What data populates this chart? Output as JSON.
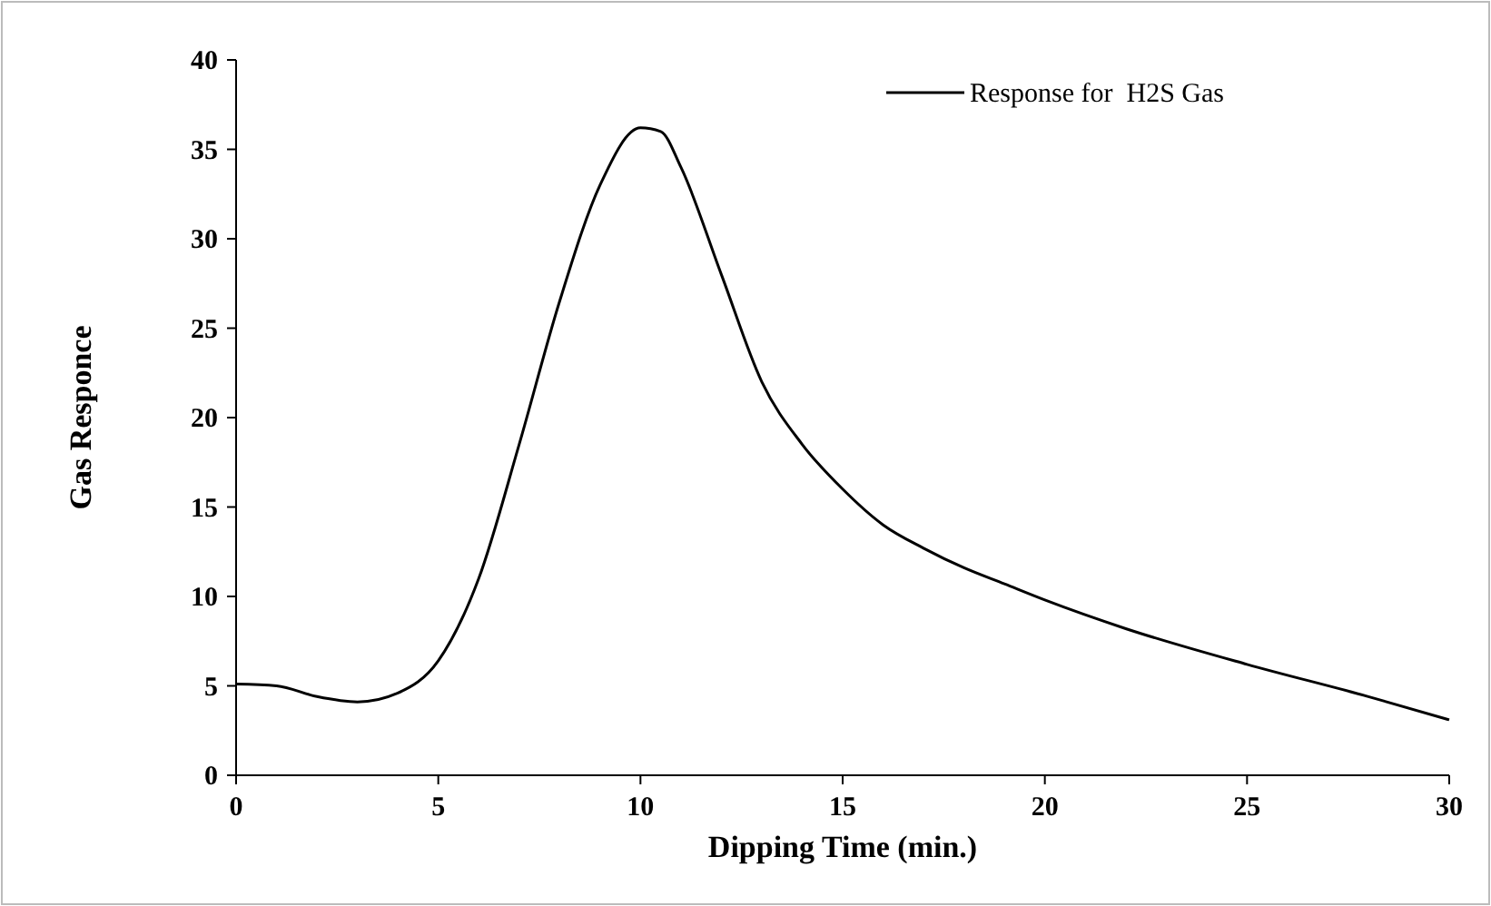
{
  "chart_data": {
    "type": "line",
    "xlabel": "Dipping Time (min.)",
    "ylabel": "Gas Responce",
    "xlim": [
      0,
      30
    ],
    "xticks": [
      0,
      5,
      10,
      15,
      20,
      25,
      30
    ],
    "ylim": [
      0,
      40
    ],
    "yticks": [
      0,
      5,
      10,
      15,
      20,
      25,
      30,
      35,
      40
    ],
    "legend": "top right",
    "grid": false,
    "marker": "none",
    "line_style": "solid",
    "series": [
      {
        "name": "Response for  H2S Gas",
        "color": "#000000",
        "x": [
          0,
          1,
          2,
          3,
          4,
          5,
          6,
          7,
          8,
          9,
          10,
          10.5,
          11,
          12,
          13,
          14,
          15,
          16,
          17,
          18,
          19,
          20,
          22,
          25,
          28,
          30
        ],
        "values": [
          5.1,
          5.0,
          4.4,
          4.1,
          4.6,
          6.4,
          11,
          18.5,
          26.5,
          33,
          36.2,
          36,
          34,
          28,
          22,
          18.5,
          16,
          14,
          12.7,
          11.6,
          10.7,
          9.8,
          8.2,
          6.2,
          4.4,
          3.1
        ]
      }
    ]
  }
}
